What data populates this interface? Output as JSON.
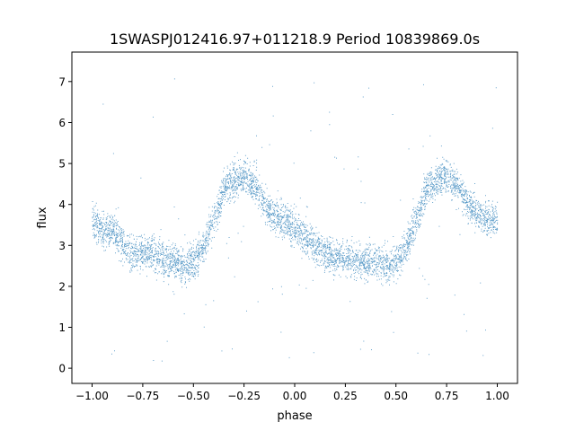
{
  "chart_data": {
    "type": "scatter",
    "title": "1SWASPJ012416.97+011218.9 Period 10839869.0s",
    "xlabel": "phase",
    "ylabel": "flux",
    "xlim": [
      -1.1,
      1.1
    ],
    "ylim": [
      -0.37,
      7.72
    ],
    "x_ticks": [
      -1.0,
      -0.75,
      -0.5,
      -0.25,
      0.0,
      0.25,
      0.5,
      0.75,
      1.0
    ],
    "x_tick_labels": [
      "−1.00",
      "−0.75",
      "−0.50",
      "−0.25",
      "0.00",
      "0.25",
      "0.50",
      "0.75",
      "1.00"
    ],
    "y_ticks": [
      0,
      1,
      2,
      3,
      4,
      5,
      6,
      7
    ],
    "y_tick_labels": [
      "0",
      "1",
      "2",
      "3",
      "4",
      "5",
      "6",
      "7"
    ],
    "grid": false,
    "legend": "none",
    "series": [
      {
        "color": "#1f77b4",
        "marker": "small dots",
        "phase_range": [
          -1.0,
          1.0
        ],
        "profile_phase": [
          -1.0,
          -0.95,
          -0.9,
          -0.85,
          -0.8,
          -0.75,
          -0.7,
          -0.65,
          -0.6,
          -0.55,
          -0.5,
          -0.45,
          -0.4,
          -0.35,
          -0.3,
          -0.25,
          -0.2,
          -0.15,
          -0.1,
          -0.05,
          0.0,
          0.05,
          0.1,
          0.15,
          0.2,
          0.25,
          0.3,
          0.35,
          0.4,
          0.45,
          0.5,
          0.55,
          0.6,
          0.65,
          0.7,
          0.75,
          0.8,
          0.85,
          0.9,
          0.95,
          1.0
        ],
        "profile_flux": [
          3.7,
          3.3,
          3.4,
          3.0,
          2.8,
          2.8,
          2.8,
          2.6,
          2.6,
          2.5,
          2.6,
          3.0,
          3.6,
          4.4,
          4.6,
          4.7,
          4.5,
          4.0,
          3.7,
          3.6,
          3.4,
          3.2,
          3.0,
          2.8,
          2.7,
          2.7,
          2.6,
          2.6,
          2.6,
          2.5,
          2.6,
          3.0,
          3.6,
          4.4,
          4.6,
          4.7,
          4.5,
          4.0,
          3.8,
          3.6,
          3.6
        ],
        "scatter_width_flux": 0.6,
        "outlier_flux_range": [
          0.05,
          7.35
        ]
      }
    ]
  }
}
